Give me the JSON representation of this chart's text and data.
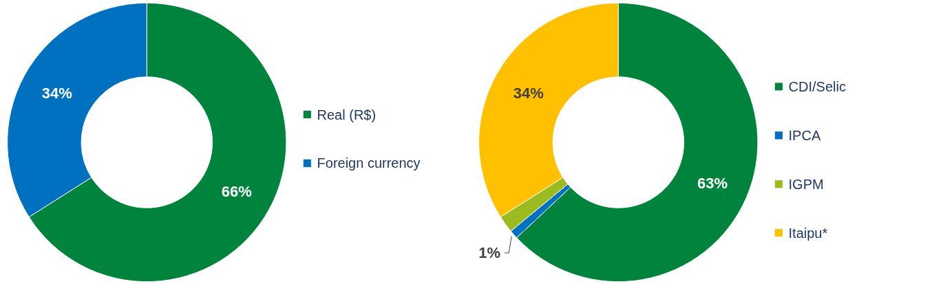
{
  "chart_data": [
    {
      "type": "donut",
      "categories": [
        "Real (R$)",
        "Foreign currency"
      ],
      "values": [
        66,
        34
      ],
      "colors": [
        "#00843d",
        "#0070c0"
      ],
      "value_labels": [
        "66%",
        "34%"
      ],
      "legend": "right"
    },
    {
      "type": "donut",
      "categories": [
        "CDI/Selic",
        "IPCA",
        "IGPM",
        "Itaipu*"
      ],
      "values": [
        63,
        1,
        2,
        34
      ],
      "colors": [
        "#00843d",
        "#0070c0",
        "#9bbb1f",
        "#ffc000"
      ],
      "value_labels": [
        "63%",
        "1%",
        null,
        "34%"
      ],
      "legend": "right"
    }
  ]
}
